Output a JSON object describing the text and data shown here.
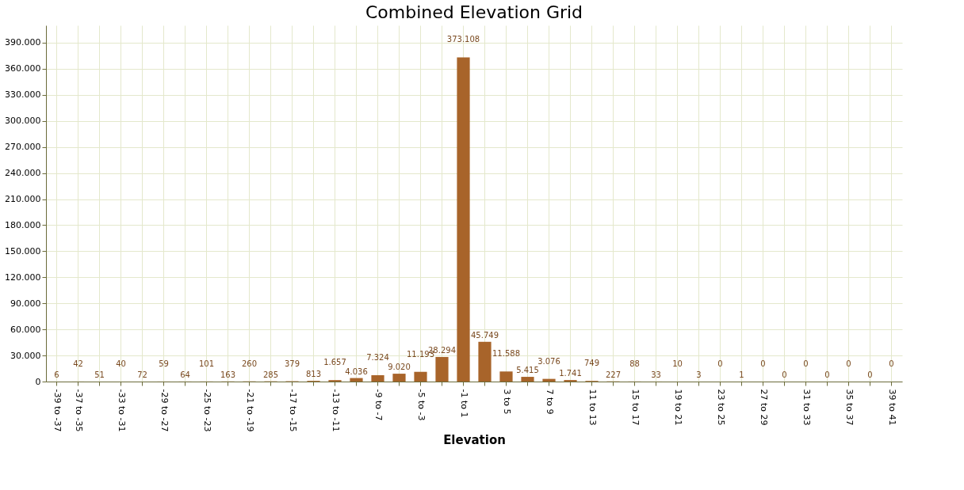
{
  "chart_data": {
    "type": "bar",
    "title": "Combined Elevation Grid",
    "xlabel": "Elevation",
    "categories": [
      "-39 to -37",
      "-37 to -35",
      null,
      "-33 to -31",
      null,
      "-29 to -27",
      null,
      "-25 to -23",
      null,
      "-21 to -19",
      null,
      "-17 to -15",
      null,
      "-13 to -11",
      null,
      "-9 to -7",
      null,
      "-5 to -3",
      null,
      "-1 to 1",
      null,
      "3 to 5",
      null,
      "7 to 9",
      null,
      "11 to 13",
      null,
      "15 to 17",
      null,
      "19 to 21",
      null,
      "23 to 25",
      null,
      "27 to 29",
      null,
      "31 to 33",
      null,
      "35 to 37",
      null,
      "39 to 41"
    ],
    "values": [
      6,
      42,
      51,
      40,
      72,
      59,
      64,
      101,
      163,
      260,
      285,
      379,
      813,
      1657,
      4036,
      7324,
      9020,
      11193,
      28294,
      373108,
      45749,
      11588,
      5415,
      3076,
      1741,
      749,
      227,
      88,
      33,
      10,
      3,
      0,
      1,
      0,
      0,
      0,
      0,
      0,
      0,
      0
    ],
    "value_labels": [
      "6",
      "42",
      "51",
      "40",
      "72",
      "59",
      "64",
      "101",
      "163",
      "260",
      "285",
      "379",
      "813",
      "1.657",
      "4.036",
      "7.324",
      "9.020",
      "11.193",
      "28.294",
      "373.108",
      "45.749",
      "11.588",
      "5.415",
      "3.076",
      "1.741",
      "749",
      "227",
      "88",
      "33",
      "10",
      "3",
      "0",
      "1",
      "0",
      "0",
      "0",
      "0",
      "0",
      "0",
      "0"
    ],
    "color": "#a8642a",
    "ylim": [
      0,
      410000
    ],
    "yticks": [
      0,
      {
        "value": 30000,
        "label": "30.000"
      },
      {
        "value": 60000,
        "label": "60.000"
      },
      {
        "value": 90000,
        "label": "90.000"
      },
      {
        "value": 120000,
        "label": "120.000"
      },
      {
        "value": 150000,
        "label": "150.000"
      },
      {
        "value": 180000,
        "label": "180.000"
      },
      {
        "value": 210000,
        "label": "210.000"
      },
      {
        "value": 240000,
        "label": "240.000"
      },
      {
        "value": 270000,
        "label": "270.000"
      },
      {
        "value": 300000,
        "label": "300.000"
      },
      {
        "value": 330000,
        "label": "330.000"
      },
      {
        "value": 360000,
        "label": "360.000"
      },
      {
        "value": 390000,
        "label": "390.000"
      }
    ],
    "grid": true
  }
}
